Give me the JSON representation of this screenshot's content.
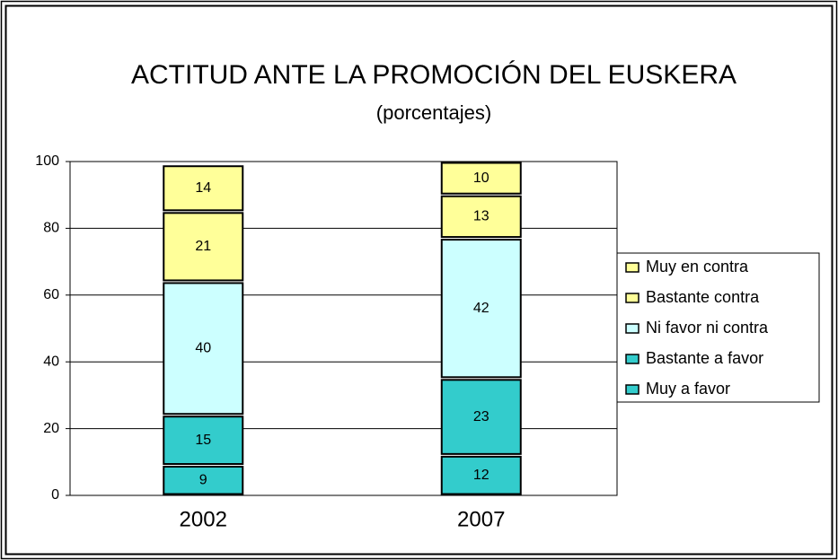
{
  "chart_data": {
    "type": "stacked_bar",
    "title": "ACTITUD ANTE LA PROMOCIÓN DEL EUSKERA",
    "subtitle": "(porcentajes)",
    "categories": [
      "2002",
      "2007"
    ],
    "series": [
      {
        "name": "Muy a favor",
        "color": "#33cccc",
        "values": [
          9,
          12
        ]
      },
      {
        "name": "Bastante a favor",
        "color": "#33cccc",
        "values": [
          15,
          23
        ]
      },
      {
        "name": "Ni favor ni contra",
        "color": "#ccffff",
        "values": [
          40,
          42
        ]
      },
      {
        "name": "Bastante contra",
        "color": "#ffff99",
        "values": [
          21,
          13
        ]
      },
      {
        "name": "Muy en contra",
        "color": "#ffff99",
        "values": [
          14,
          10
        ]
      }
    ],
    "ylim": [
      0,
      100
    ],
    "yticks": [
      0,
      20,
      40,
      60,
      80,
      100
    ],
    "grid": true,
    "legend": "right"
  }
}
